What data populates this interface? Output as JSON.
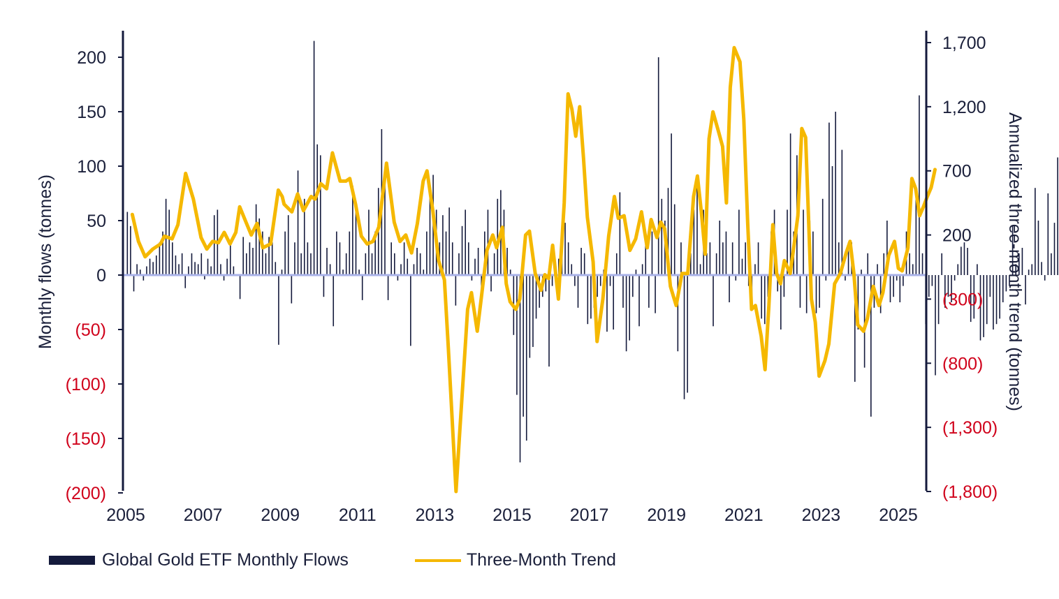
{
  "chart_data": {
    "type": "bar+line",
    "x_start": "2005-01",
    "x_end": "2025-09",
    "x_ticks": [
      "2005",
      "2007",
      "2009",
      "2011",
      "2013",
      "2015",
      "2017",
      "2019",
      "2021",
      "2023",
      "2025"
    ],
    "y_left": {
      "label": "Monthly flows (tonnes)",
      "range": [
        -200,
        225
      ],
      "ticks": [
        200,
        150,
        100,
        50,
        0,
        -50,
        -100,
        -150,
        -200
      ],
      "tick_labels": [
        "200",
        "150",
        "100",
        "50",
        "0",
        "(50)",
        "(100)",
        "(150)",
        "(200)"
      ]
    },
    "y_right": {
      "label": "Annualized three-month trend (tonnes)",
      "range": [
        -1800,
        1800
      ],
      "ticks": [
        1700,
        1200,
        700,
        200,
        -300,
        -800,
        -1300,
        -1800
      ],
      "tick_labels": [
        "1,700",
        "1,200",
        "700",
        "200",
        "(300)",
        "(800)",
        "(1,300)",
        "(1,800)"
      ]
    },
    "negative_label_color": "#d0021b",
    "positive_label_color": "#1a1f3a",
    "bar_color": "#141a3c",
    "line_color": "#f5b800",
    "zero_line_color": "#a9b2e8",
    "series": [
      {
        "name": "Global Gold ETF Monthly Flows",
        "axis": "left",
        "values": [
          58,
          45,
          -15,
          10,
          5,
          -5,
          8,
          15,
          12,
          18,
          30,
          40,
          70,
          60,
          30,
          18,
          10,
          20,
          -12,
          8,
          20,
          12,
          10,
          20,
          -4,
          15,
          8,
          55,
          60,
          10,
          -5,
          15,
          30,
          8,
          0,
          -22,
          35,
          20,
          30,
          25,
          65,
          52,
          40,
          20,
          35,
          30,
          12,
          -64,
          5,
          40,
          55,
          -26,
          30,
          96,
          20,
          70,
          30,
          20,
          215,
          120,
          110,
          -20,
          25,
          10,
          -47,
          40,
          30,
          5,
          20,
          40,
          82,
          60,
          5,
          -23,
          20,
          60,
          20,
          40,
          80,
          134,
          95,
          -23,
          30,
          20,
          -5,
          10,
          30,
          15,
          -65,
          10,
          25,
          20,
          5,
          40,
          80,
          92,
          60,
          30,
          55,
          40,
          62,
          30,
          -28,
          20,
          45,
          60,
          30,
          -5,
          15,
          25,
          -25,
          40,
          60,
          -15,
          20,
          70,
          78,
          60,
          25,
          5,
          -55,
          -110,
          -172,
          -130,
          -152,
          -76,
          -66,
          -40,
          -30,
          -20,
          -15,
          -84,
          -10,
          5,
          15,
          20,
          48,
          30,
          10,
          -10,
          -30,
          25,
          20,
          -45,
          -40,
          -30,
          -20,
          -10,
          5,
          -52,
          -10,
          -50,
          20,
          76,
          -30,
          -70,
          -60,
          -20,
          5,
          -47,
          10,
          30,
          -30,
          40,
          -35,
          200,
          70,
          50,
          80,
          130,
          65,
          -70,
          30,
          -114,
          -108,
          20,
          60,
          90,
          10,
          60,
          20,
          30,
          -47,
          20,
          50,
          30,
          40,
          -25,
          30,
          -5,
          60,
          15,
          30,
          -10,
          -20,
          10,
          30,
          -40,
          -45,
          -20,
          40,
          60,
          -15,
          -50,
          -20,
          60,
          130,
          40,
          110,
          -30,
          60,
          -35,
          50,
          40,
          -35,
          -30,
          70,
          -5,
          140,
          100,
          150,
          30,
          115,
          -5,
          30,
          30,
          -98,
          -50,
          5,
          -85,
          20,
          -130,
          -30,
          10,
          -35,
          20,
          50,
          -25,
          -20,
          -5,
          -25,
          -10,
          40,
          20,
          10,
          80,
          165,
          20,
          -45,
          -20,
          -10,
          -92,
          -45,
          20,
          -30,
          -20,
          -25,
          -5,
          10,
          26,
          30,
          25,
          -43,
          -40,
          10,
          -60,
          -57,
          -45,
          -20,
          -50,
          -45,
          -40,
          -25,
          -15,
          -10,
          45,
          10,
          20,
          25,
          -27,
          5,
          10,
          80,
          50,
          12,
          -5,
          75,
          20,
          48,
          108
        ]
      },
      {
        "name": "Three-Month Trend",
        "axis": "right",
        "points": [
          [
            2005.17,
            360
          ],
          [
            2005.33,
            150
          ],
          [
            2005.5,
            30
          ],
          [
            2005.7,
            90
          ],
          [
            2005.9,
            130
          ],
          [
            2006.0,
            190
          ],
          [
            2006.2,
            170
          ],
          [
            2006.35,
            280
          ],
          [
            2006.55,
            680
          ],
          [
            2006.75,
            480
          ],
          [
            2006.95,
            180
          ],
          [
            2007.1,
            90
          ],
          [
            2007.25,
            150
          ],
          [
            2007.4,
            140
          ],
          [
            2007.55,
            220
          ],
          [
            2007.7,
            130
          ],
          [
            2007.85,
            220
          ],
          [
            2007.95,
            420
          ],
          [
            2008.1,
            310
          ],
          [
            2008.25,
            200
          ],
          [
            2008.4,
            290
          ],
          [
            2008.55,
            100
          ],
          [
            2008.75,
            130
          ],
          [
            2008.95,
            550
          ],
          [
            2009.05,
            500
          ],
          [
            2009.1,
            440
          ],
          [
            2009.3,
            380
          ],
          [
            2009.45,
            520
          ],
          [
            2009.6,
            390
          ],
          [
            2009.8,
            500
          ],
          [
            2009.9,
            480
          ],
          [
            2010.05,
            600
          ],
          [
            2010.2,
            560
          ],
          [
            2010.35,
            840
          ],
          [
            2010.45,
            730
          ],
          [
            2010.55,
            620
          ],
          [
            2010.7,
            620
          ],
          [
            2010.8,
            640
          ],
          [
            2010.95,
            440
          ],
          [
            2011.1,
            190
          ],
          [
            2011.25,
            130
          ],
          [
            2011.4,
            150
          ],
          [
            2011.55,
            260
          ],
          [
            2011.75,
            760
          ],
          [
            2011.95,
            300
          ],
          [
            2012.1,
            150
          ],
          [
            2012.25,
            200
          ],
          [
            2012.4,
            60
          ],
          [
            2012.55,
            290
          ],
          [
            2012.7,
            620
          ],
          [
            2012.8,
            700
          ],
          [
            2012.95,
            390
          ],
          [
            2013.1,
            0
          ],
          [
            2013.25,
            -150
          ],
          [
            2013.35,
            -680
          ],
          [
            2013.45,
            -1240
          ],
          [
            2013.55,
            -1800
          ],
          [
            2013.65,
            -1320
          ],
          [
            2013.75,
            -850
          ],
          [
            2013.85,
            -380
          ],
          [
            2013.95,
            -250
          ],
          [
            2014.1,
            -550
          ],
          [
            2014.2,
            -300
          ],
          [
            2014.35,
            80
          ],
          [
            2014.5,
            200
          ],
          [
            2014.6,
            100
          ],
          [
            2014.75,
            260
          ],
          [
            2014.85,
            -180
          ],
          [
            2014.95,
            -320
          ],
          [
            2015.1,
            -380
          ],
          [
            2015.2,
            -300
          ],
          [
            2015.35,
            200
          ],
          [
            2015.45,
            230
          ],
          [
            2015.6,
            -100
          ],
          [
            2015.75,
            -230
          ],
          [
            2015.85,
            -110
          ],
          [
            2015.95,
            -140
          ],
          [
            2016.05,
            120
          ],
          [
            2016.2,
            -300
          ],
          [
            2016.35,
            450
          ],
          [
            2016.45,
            1300
          ],
          [
            2016.55,
            1180
          ],
          [
            2016.65,
            970
          ],
          [
            2016.75,
            1200
          ],
          [
            2016.85,
            800
          ],
          [
            2016.95,
            340
          ],
          [
            2017.1,
            -10
          ],
          [
            2017.2,
            -630
          ],
          [
            2017.35,
            -300
          ],
          [
            2017.5,
            190
          ],
          [
            2017.65,
            500
          ],
          [
            2017.75,
            330
          ],
          [
            2017.9,
            350
          ],
          [
            2018.05,
            80
          ],
          [
            2018.2,
            170
          ],
          [
            2018.35,
            380
          ],
          [
            2018.5,
            100
          ],
          [
            2018.6,
            320
          ],
          [
            2018.75,
            180
          ],
          [
            2018.85,
            300
          ],
          [
            2018.95,
            250
          ],
          [
            2019.1,
            -200
          ],
          [
            2019.25,
            -350
          ],
          [
            2019.4,
            -100
          ],
          [
            2019.55,
            -100
          ],
          [
            2019.7,
            500
          ],
          [
            2019.8,
            660
          ],
          [
            2019.9,
            380
          ],
          [
            2020.0,
            50
          ],
          [
            2020.1,
            950
          ],
          [
            2020.2,
            1160
          ],
          [
            2020.35,
            1000
          ],
          [
            2020.45,
            890
          ],
          [
            2020.55,
            450
          ],
          [
            2020.65,
            1350
          ],
          [
            2020.75,
            1660
          ],
          [
            2020.9,
            1550
          ],
          [
            2021.0,
            1100
          ],
          [
            2021.1,
            300
          ],
          [
            2021.2,
            -380
          ],
          [
            2021.3,
            -350
          ],
          [
            2021.45,
            -590
          ],
          [
            2021.55,
            -850
          ],
          [
            2021.65,
            -350
          ],
          [
            2021.75,
            280
          ],
          [
            2021.85,
            -100
          ],
          [
            2021.95,
            -180
          ],
          [
            2022.05,
            0
          ],
          [
            2022.2,
            -100
          ],
          [
            2022.3,
            120
          ],
          [
            2022.4,
            350
          ],
          [
            2022.5,
            1030
          ],
          [
            2022.6,
            960
          ],
          [
            2022.75,
            -300
          ],
          [
            2022.85,
            -480
          ],
          [
            2022.95,
            -900
          ],
          [
            2023.1,
            -780
          ],
          [
            2023.2,
            -650
          ],
          [
            2023.35,
            -180
          ],
          [
            2023.5,
            -100
          ],
          [
            2023.65,
            60
          ],
          [
            2023.75,
            150
          ],
          [
            2023.85,
            -100
          ],
          [
            2023.95,
            -500
          ],
          [
            2024.1,
            -550
          ],
          [
            2024.2,
            -450
          ],
          [
            2024.35,
            -200
          ],
          [
            2024.5,
            -350
          ],
          [
            2024.6,
            -250
          ],
          [
            2024.75,
            40
          ],
          [
            2024.9,
            150
          ],
          [
            2025.0,
            -60
          ],
          [
            2025.1,
            -80
          ],
          [
            2025.25,
            100
          ],
          [
            2025.35,
            640
          ],
          [
            2025.45,
            560
          ],
          [
            2025.55,
            350
          ],
          [
            2025.65,
            420
          ],
          [
            2025.75,
            500
          ],
          [
            2025.85,
            570
          ],
          [
            2025.95,
            710
          ]
        ]
      }
    ],
    "legend_position": "bottom-left"
  }
}
